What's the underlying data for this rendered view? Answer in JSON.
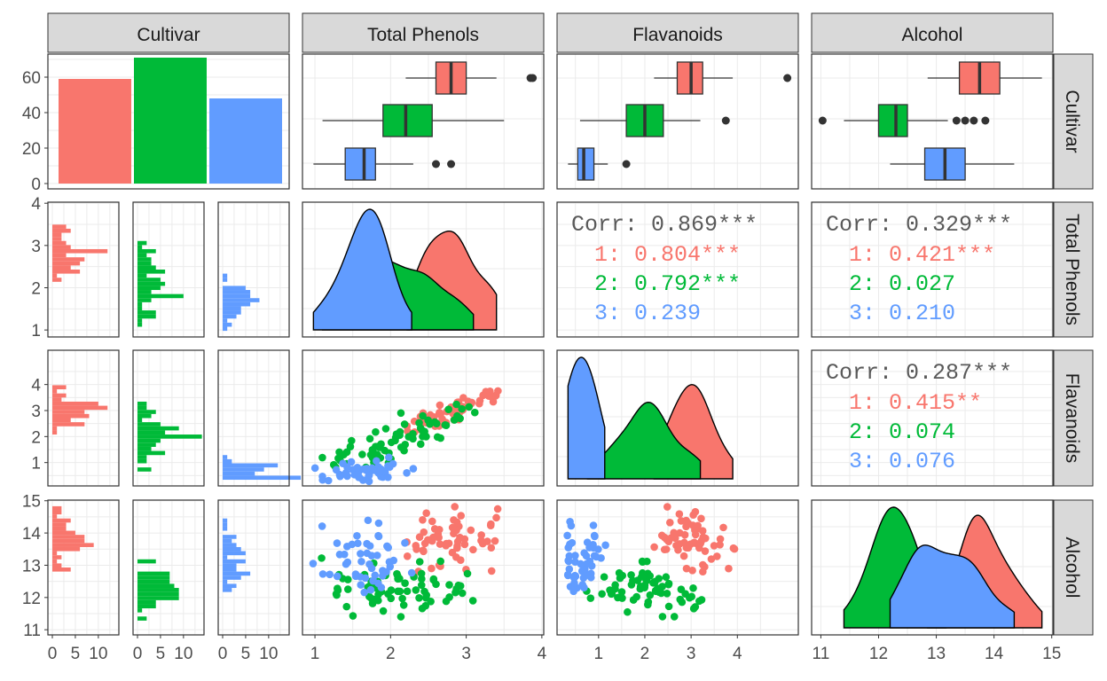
{
  "colors": {
    "c1": "#F8766D",
    "c2": "#00BA38",
    "c3": "#619CFF",
    "strip": "#D9D9D9",
    "grid": "#EBEBEB",
    "corr": "#595959",
    "text": "#1A1A1A",
    "axis_text": "#4D4D4D"
  },
  "variables": [
    "Cultivar",
    "Total Phenols",
    "Flavanoids",
    "Alcohol"
  ],
  "chart_data": {
    "type": "scatter",
    "title": "",
    "levels": [
      "1",
      "2",
      "3"
    ],
    "counts": {
      "1": 59,
      "2": 71,
      "3": 48
    },
    "ranges": {
      "Total Phenols": [
        0.98,
        3.88
      ],
      "Flavanoids": [
        0.34,
        5.08
      ],
      "Alcohol": [
        11.03,
        14.83
      ]
    },
    "axis_ticks": {
      "Cultivar_count": [
        0,
        20,
        40,
        60
      ],
      "hist_count": [
        0,
        5,
        10
      ],
      "Total Phenols": [
        1,
        2,
        3,
        4
      ],
      "Flavanoids": [
        1,
        2,
        3,
        4
      ],
      "Alcohol": [
        11,
        12,
        13,
        14,
        15
      ]
    },
    "boxplots": {
      "Total Phenols": {
        "1": {
          "min": 2.2,
          "q1": 2.6,
          "median": 2.8,
          "q3": 3.0,
          "max": 3.4,
          "outliers": [
            3.85,
            3.88
          ]
        },
        "2": {
          "min": 1.1,
          "q1": 1.9,
          "median": 2.2,
          "q3": 2.55,
          "max": 3.5,
          "outliers": []
        },
        "3": {
          "min": 0.98,
          "q1": 1.4,
          "median": 1.65,
          "q3": 1.8,
          "max": 2.3,
          "outliers": [
            2.6,
            2.8
          ]
        }
      },
      "Flavanoids": {
        "1": {
          "min": 2.2,
          "q1": 2.7,
          "median": 3.0,
          "q3": 3.25,
          "max": 3.9,
          "outliers": [
            5.08
          ]
        },
        "2": {
          "min": 0.6,
          "q1": 1.6,
          "median": 2.0,
          "q3": 2.4,
          "max": 3.2,
          "outliers": [
            3.75
          ]
        },
        "3": {
          "min": 0.34,
          "q1": 0.55,
          "median": 0.68,
          "q3": 0.9,
          "max": 1.2,
          "outliers": [
            1.6
          ]
        }
      },
      "Alcohol": {
        "1": {
          "min": 12.85,
          "q1": 13.4,
          "median": 13.75,
          "q3": 14.1,
          "max": 14.83,
          "outliers": []
        },
        "2": {
          "min": 11.4,
          "q1": 12.0,
          "median": 12.3,
          "q3": 12.5,
          "max": 13.2,
          "outliers": [
            11.03,
            13.35,
            13.5,
            13.65,
            13.85
          ]
        },
        "3": {
          "min": 12.2,
          "q1": 12.8,
          "median": 13.15,
          "q3": 13.5,
          "max": 14.35,
          "outliers": []
        }
      }
    },
    "correlations": {
      "Total Phenols|Flavanoids": {
        "overall": "0.869***",
        "1": "0.804***",
        "2": "0.792***",
        "3": "0.239"
      },
      "Total Phenols|Alcohol": {
        "overall": "0.329***",
        "1": "0.421***",
        "2": "0.027",
        "3": "0.210"
      },
      "Flavanoids|Alcohol": {
        "overall": "0.287***",
        "1": "0.415**",
        "2": "0.074",
        "3": "0.076"
      }
    },
    "corr_prefix": "Corr:"
  }
}
